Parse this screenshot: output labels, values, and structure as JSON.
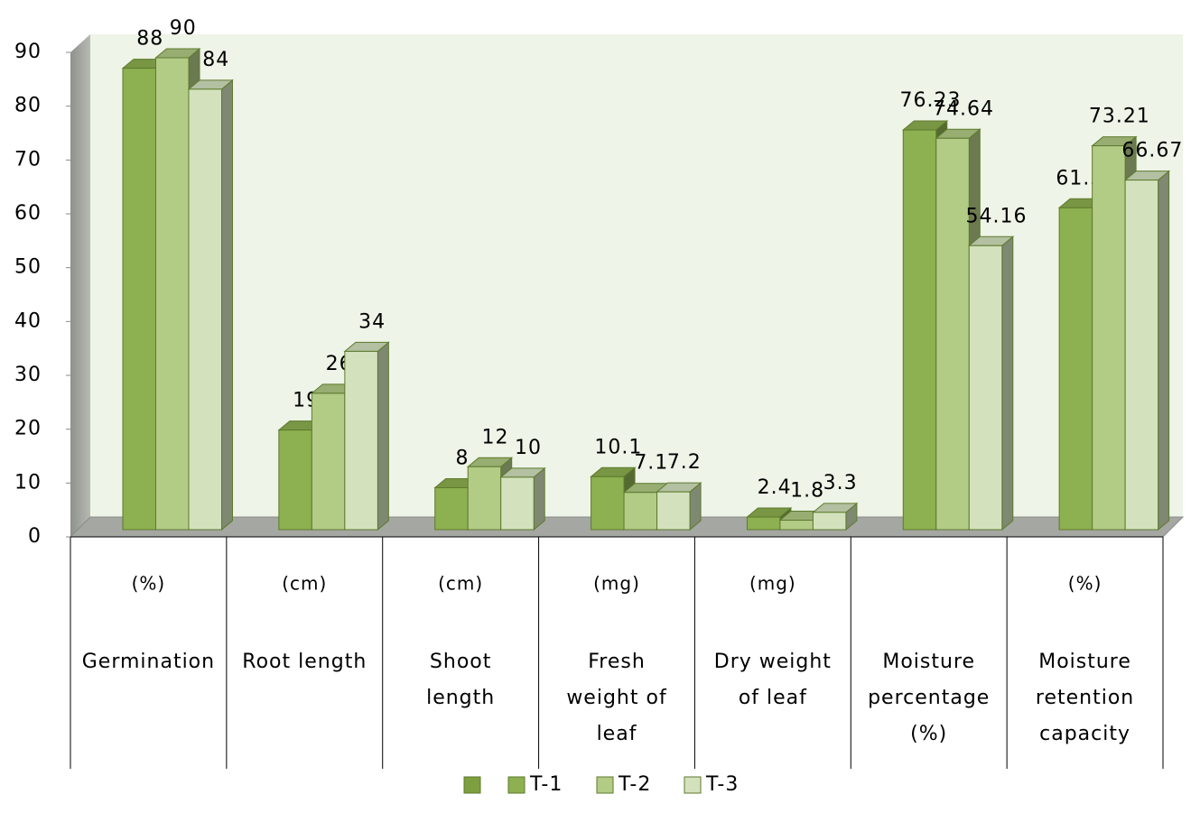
{
  "chart_data": {
    "type": "bar3d",
    "categories": [
      [
        "Germination"
      ],
      [
        "Root length"
      ],
      [
        "Shoot",
        "length"
      ],
      [
        "Fresh",
        "weight of",
        "leaf"
      ],
      [
        "Dry weight",
        "of leaf"
      ],
      [
        "Moisture",
        "percentage",
        "(%)"
      ],
      [
        "Moisture",
        "retention",
        "capacity"
      ]
    ],
    "category_units": [
      "(%)",
      "(cm)",
      "(cm)",
      "(mg)",
      "(mg)",
      null,
      "(%)"
    ],
    "series": [
      {
        "name": "T-1",
        "color": "#8db050",
        "values": [
          88,
          19,
          8,
          10.1,
          2.4,
          76.23,
          61.39
        ]
      },
      {
        "name": "T-2",
        "color": "#b2cc86",
        "values": [
          90,
          26,
          12,
          7.1,
          1.8,
          74.64,
          73.21
        ]
      },
      {
        "name": "T-3",
        "color": "#d3e2bd",
        "values": [
          84,
          34,
          10,
          7.2,
          3.3,
          54.16,
          66.67
        ]
      }
    ],
    "ylim": [
      0,
      90
    ],
    "yticks": [
      0,
      10,
      20,
      30,
      40,
      50,
      60,
      70,
      80,
      90
    ],
    "legend": "bottom"
  }
}
